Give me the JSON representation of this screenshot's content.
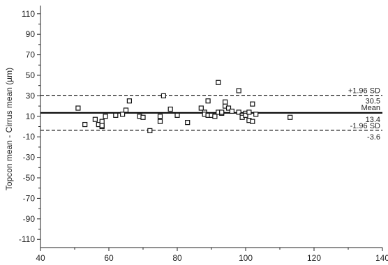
{
  "chart_data": {
    "type": "scatter",
    "title": "",
    "xlabel": "",
    "ylabel": "Topcon mean - Cirrus mean (µm)",
    "xlim": [
      40,
      140
    ],
    "ylim": [
      -118,
      118
    ],
    "x_ticks": [
      40,
      60,
      80,
      100,
      120,
      140
    ],
    "y_ticks": [
      110,
      90,
      70,
      50,
      30,
      10,
      -10,
      -30,
      -50,
      -70,
      -90,
      -110
    ],
    "grid": false,
    "reference_lines": [
      {
        "label": "+1.96 SD",
        "value_label": "30.5",
        "y": 30.5,
        "style": "dashed"
      },
      {
        "label": "Mean",
        "value_label": "13.4",
        "y": 13.4,
        "style": "solid"
      },
      {
        "label": "-1.96 SD",
        "value_label": "-3.6",
        "y": -3.6,
        "style": "dashed"
      }
    ],
    "points": [
      [
        51,
        18
      ],
      [
        53,
        2
      ],
      [
        56,
        7
      ],
      [
        57,
        2
      ],
      [
        58,
        5
      ],
      [
        58,
        0
      ],
      [
        58,
        1
      ],
      [
        59,
        10
      ],
      [
        62,
        11
      ],
      [
        64,
        12
      ],
      [
        65,
        16
      ],
      [
        66,
        25
      ],
      [
        69,
        10
      ],
      [
        70,
        9
      ],
      [
        72,
        -4
      ],
      [
        75,
        5
      ],
      [
        75,
        10
      ],
      [
        76,
        30
      ],
      [
        78,
        17
      ],
      [
        80,
        11
      ],
      [
        83,
        4
      ],
      [
        87,
        18
      ],
      [
        88,
        14
      ],
      [
        88,
        12
      ],
      [
        89,
        25
      ],
      [
        89,
        11
      ],
      [
        90,
        11
      ],
      [
        91,
        10
      ],
      [
        92,
        14
      ],
      [
        92,
        43
      ],
      [
        93,
        13
      ],
      [
        93,
        14
      ],
      [
        94,
        20
      ],
      [
        94,
        24
      ],
      [
        95,
        18
      ],
      [
        96,
        15
      ],
      [
        98,
        35
      ],
      [
        98,
        14
      ],
      [
        99,
        11
      ],
      [
        99,
        9
      ],
      [
        100,
        13
      ],
      [
        100,
        11
      ],
      [
        101,
        14
      ],
      [
        101,
        6
      ],
      [
        102,
        22
      ],
      [
        102,
        5
      ],
      [
        103,
        12
      ],
      [
        113,
        9
      ]
    ],
    "colors": {
      "axis": "#222222",
      "marker_stroke": "#111111",
      "marker_fill": "#ffffff",
      "line": "#000000"
    }
  }
}
